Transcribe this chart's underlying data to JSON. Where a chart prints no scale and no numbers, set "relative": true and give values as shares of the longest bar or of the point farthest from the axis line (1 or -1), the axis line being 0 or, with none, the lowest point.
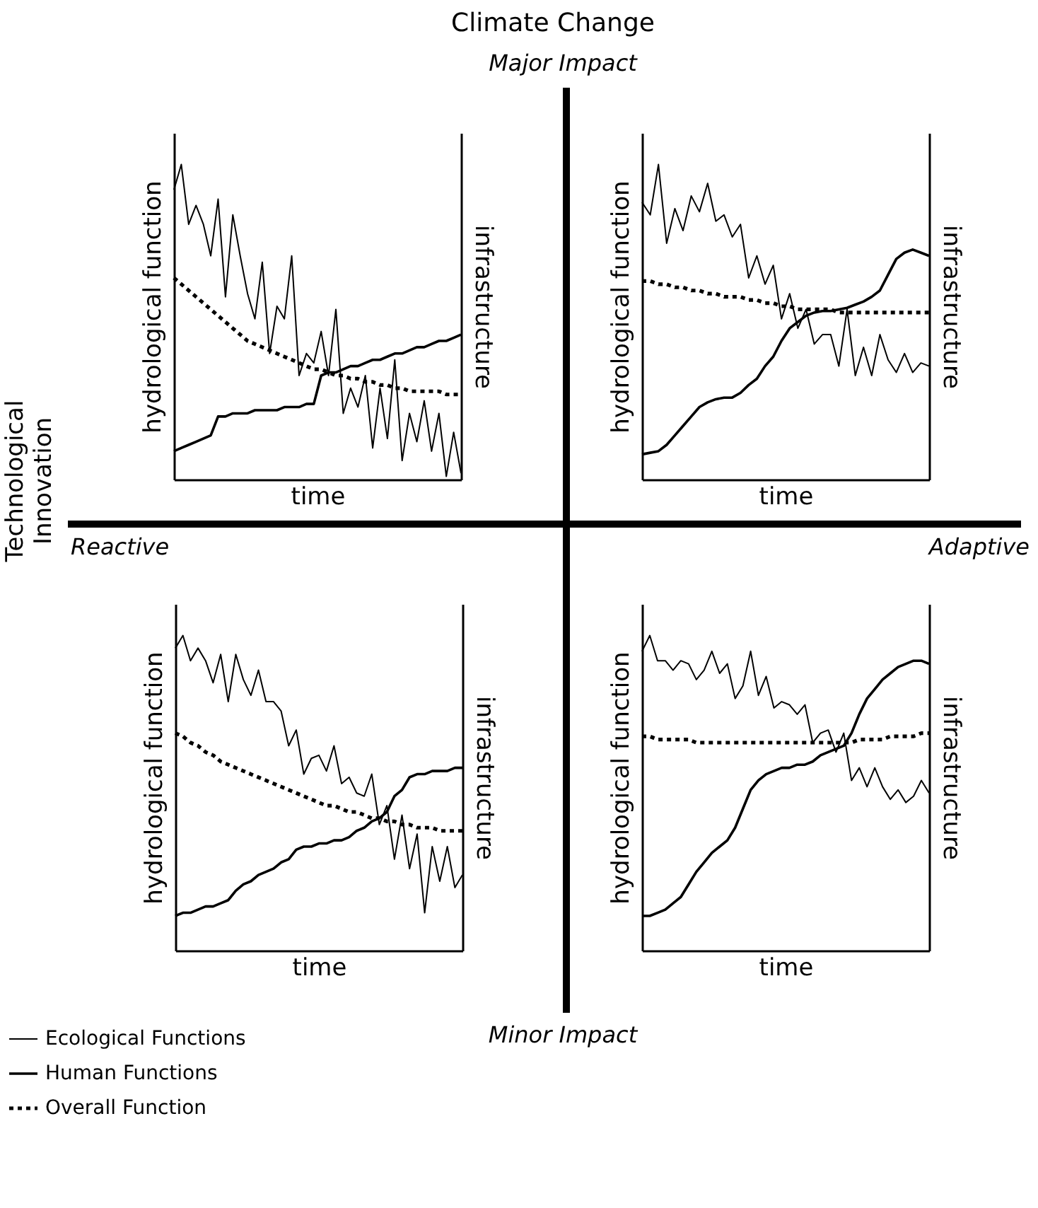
{
  "chart_data": [
    {
      "type": "line",
      "relative": true,
      "xlabel": "time",
      "ylabel": "hydrological function",
      "y2label": "infrastructure",
      "categories": [
        null,
        null,
        null,
        null,
        null,
        null,
        null,
        null,
        null,
        null,
        null,
        null,
        null,
        null,
        null,
        null,
        null,
        null,
        null,
        null,
        null,
        null,
        null,
        null,
        null,
        null,
        null,
        null,
        null,
        null,
        null,
        null,
        null,
        null,
        null,
        null,
        null,
        null,
        null,
        null
      ],
      "series": [
        {
          "color": "#000000",
          "line_style": "solid",
          "values": [
            0.92,
            1,
            0.81,
            0.87,
            0.81,
            0.71,
            0.89,
            0.58,
            0.84,
            0.71,
            0.59,
            0.51,
            0.69,
            0.4,
            0.55,
            0.51,
            0.71,
            0.33,
            0.4,
            0.37,
            0.47,
            0.33,
            0.54,
            0.21,
            0.29,
            0.23,
            0.33,
            0.1,
            0.29,
            0.13,
            0.38,
            0.06,
            0.21,
            0.12,
            0.25,
            0.09,
            0.21,
            0.01,
            0.15,
            0.02
          ]
        },
        {
          "color": "#000000",
          "line_style": "solid",
          "values": [
            0.09,
            0.1,
            0.11,
            0.12,
            0.13,
            0.14,
            0.2,
            0.2,
            0.21,
            0.21,
            0.21,
            0.22,
            0.22,
            0.22,
            0.22,
            0.23,
            0.23,
            0.23,
            0.24,
            0.24,
            0.33,
            0.34,
            0.34,
            0.35,
            0.36,
            0.36,
            0.37,
            0.38,
            0.38,
            0.39,
            0.4,
            0.4,
            0.41,
            0.42,
            0.42,
            0.43,
            0.44,
            0.44,
            0.45,
            0.46
          ]
        },
        {
          "color": "#000000",
          "line_style": "dotted",
          "values": [
            0.64,
            0.62,
            0.6,
            0.58,
            0.56,
            0.54,
            0.52,
            0.5,
            0.48,
            0.46,
            0.44,
            0.43,
            0.42,
            0.41,
            0.4,
            0.39,
            0.38,
            0.37,
            0.36,
            0.35,
            0.35,
            0.34,
            0.33,
            0.33,
            0.32,
            0.32,
            0.31,
            0.31,
            0.3,
            0.3,
            0.29,
            0.29,
            0.28,
            0.28,
            0.28,
            0.28,
            0.28,
            0.27,
            0.27,
            0.27
          ]
        }
      ]
    },
    {
      "type": "line",
      "relative": true,
      "xlabel": "time",
      "ylabel": "hydrological function",
      "y2label": "infrastructure",
      "categories": [
        null,
        null,
        null,
        null,
        null,
        null,
        null,
        null,
        null,
        null,
        null,
        null,
        null,
        null,
        null,
        null,
        null,
        null,
        null,
        null,
        null,
        null,
        null,
        null,
        null,
        null,
        null,
        null,
        null,
        null,
        null,
        null,
        null,
        null,
        null,
        null
      ],
      "series": [
        {
          "color": "#000000",
          "line_style": "solid",
          "values": [
            0.88,
            0.84,
            1,
            0.75,
            0.86,
            0.79,
            0.9,
            0.85,
            0.94,
            0.82,
            0.84,
            0.77,
            0.81,
            0.64,
            0.71,
            0.62,
            0.68,
            0.51,
            0.59,
            0.48,
            0.54,
            0.43,
            0.46,
            0.46,
            0.36,
            0.54,
            0.33,
            0.42,
            0.33,
            0.46,
            0.38,
            0.34,
            0.4,
            0.34,
            0.37,
            0.36
          ]
        },
        {
          "color": "#000000",
          "line_style": "solid",
          "values": [
            0.08,
            0.085,
            0.09,
            0.11,
            0.14,
            0.17,
            0.2,
            0.23,
            0.245,
            0.255,
            0.26,
            0.26,
            0.275,
            0.3,
            0.32,
            0.36,
            0.39,
            0.44,
            0.48,
            0.5,
            0.52,
            0.53,
            0.535,
            0.535,
            0.54,
            0.545,
            0.555,
            0.565,
            0.58,
            0.6,
            0.65,
            0.7,
            0.72,
            0.73,
            0.72,
            0.71
          ]
        },
        {
          "color": "#000000",
          "line_style": "dotted",
          "values": [
            0.63,
            0.63,
            0.62,
            0.62,
            0.61,
            0.61,
            0.6,
            0.6,
            0.59,
            0.59,
            0.58,
            0.58,
            0.58,
            0.57,
            0.57,
            0.56,
            0.56,
            0.55,
            0.55,
            0.54,
            0.54,
            0.54,
            0.54,
            0.54,
            0.53,
            0.53,
            0.53,
            0.53,
            0.53,
            0.53,
            0.53,
            0.53,
            0.53,
            0.53,
            0.53,
            0.53
          ]
        }
      ]
    },
    {
      "type": "line",
      "relative": true,
      "xlabel": "time",
      "ylabel": "hydrological function",
      "y2label": "infrastructure",
      "legend": "bottom left",
      "categories": [
        null,
        null,
        null,
        null,
        null,
        null,
        null,
        null,
        null,
        null,
        null,
        null,
        null,
        null,
        null,
        null,
        null,
        null,
        null,
        null,
        null,
        null,
        null,
        null,
        null,
        null,
        null,
        null,
        null,
        null,
        null,
        null,
        null,
        null,
        null,
        null,
        null,
        null,
        null
      ],
      "series": [
        {
          "name": "Ecological Functions",
          "color": "#000000",
          "line_style": "solid",
          "values": [
            0.96,
            1,
            0.92,
            0.96,
            0.92,
            0.85,
            0.94,
            0.79,
            0.94,
            0.86,
            0.81,
            0.89,
            0.79,
            0.79,
            0.76,
            0.65,
            0.7,
            0.56,
            0.61,
            0.62,
            0.57,
            0.65,
            0.53,
            0.55,
            0.5,
            0.49,
            0.56,
            0.4,
            0.46,
            0.29,
            0.43,
            0.26,
            0.37,
            0.12,
            0.33,
            0.22,
            0.33,
            0.2,
            0.24
          ]
        },
        {
          "name": "Human Functions",
          "color": "#000000",
          "line_style": "solid",
          "values": [
            0.11,
            0.12,
            0.12,
            0.13,
            0.14,
            0.14,
            0.15,
            0.16,
            0.19,
            0.21,
            0.22,
            0.24,
            0.25,
            0.26,
            0.28,
            0.29,
            0.32,
            0.33,
            0.33,
            0.34,
            0.34,
            0.35,
            0.35,
            0.36,
            0.38,
            0.39,
            0.41,
            0.42,
            0.44,
            0.49,
            0.51,
            0.55,
            0.56,
            0.56,
            0.57,
            0.57,
            0.57,
            0.58,
            0.58
          ]
        },
        {
          "name": "Overall Function",
          "color": "#000000",
          "line_style": "dotted",
          "values": [
            0.69,
            0.68,
            0.66,
            0.65,
            0.63,
            0.62,
            0.6,
            0.59,
            0.58,
            0.57,
            0.56,
            0.55,
            0.54,
            0.53,
            0.52,
            0.51,
            0.5,
            0.49,
            0.48,
            0.47,
            0.46,
            0.46,
            0.45,
            0.44,
            0.44,
            0.43,
            0.42,
            0.42,
            0.41,
            0.41,
            0.4,
            0.4,
            0.39,
            0.39,
            0.39,
            0.38,
            0.38,
            0.38,
            0.38
          ]
        }
      ]
    },
    {
      "type": "line",
      "relative": true,
      "xlabel": "time",
      "ylabel": "hydrological function",
      "y2label": "infrastructure",
      "categories": [
        null,
        null,
        null,
        null,
        null,
        null,
        null,
        null,
        null,
        null,
        null,
        null,
        null,
        null,
        null,
        null,
        null,
        null,
        null,
        null,
        null,
        null,
        null,
        null,
        null,
        null,
        null,
        null,
        null,
        null,
        null,
        null,
        null,
        null,
        null,
        null,
        null,
        null
      ],
      "series": [
        {
          "color": "#000000",
          "line_style": "solid",
          "values": [
            0.95,
            1,
            0.92,
            0.92,
            0.89,
            0.92,
            0.91,
            0.86,
            0.89,
            0.95,
            0.88,
            0.91,
            0.8,
            0.84,
            0.95,
            0.81,
            0.87,
            0.77,
            0.79,
            0.78,
            0.75,
            0.78,
            0.66,
            0.69,
            0.7,
            0.63,
            0.69,
            0.54,
            0.58,
            0.52,
            0.58,
            0.52,
            0.48,
            0.51,
            0.47,
            0.49,
            0.54,
            0.5
          ]
        },
        {
          "color": "#000000",
          "line_style": "solid",
          "values": [
            0.11,
            0.11,
            0.12,
            0.13,
            0.15,
            0.17,
            0.21,
            0.25,
            0.28,
            0.31,
            0.33,
            0.35,
            0.39,
            0.45,
            0.51,
            0.54,
            0.56,
            0.57,
            0.58,
            0.58,
            0.59,
            0.59,
            0.6,
            0.62,
            0.63,
            0.64,
            0.65,
            0.69,
            0.75,
            0.8,
            0.83,
            0.86,
            0.88,
            0.9,
            0.91,
            0.92,
            0.92,
            0.91
          ]
        },
        {
          "color": "#000000",
          "line_style": "dotted",
          "values": [
            0.68,
            0.68,
            0.67,
            0.67,
            0.67,
            0.67,
            0.67,
            0.66,
            0.66,
            0.66,
            0.66,
            0.66,
            0.66,
            0.66,
            0.66,
            0.66,
            0.66,
            0.66,
            0.66,
            0.66,
            0.66,
            0.66,
            0.66,
            0.66,
            0.66,
            0.66,
            0.66,
            0.66,
            0.67,
            0.67,
            0.67,
            0.67,
            0.68,
            0.68,
            0.68,
            0.68,
            0.69,
            0.69
          ]
        }
      ]
    },
    {
      "type": "other",
      "title": "Climate Change",
      "annotations": [
        "Major Impact",
        "Minor Impact",
        "Technological Innovation",
        "Reactive",
        "Adaptive"
      ]
    }
  ]
}
